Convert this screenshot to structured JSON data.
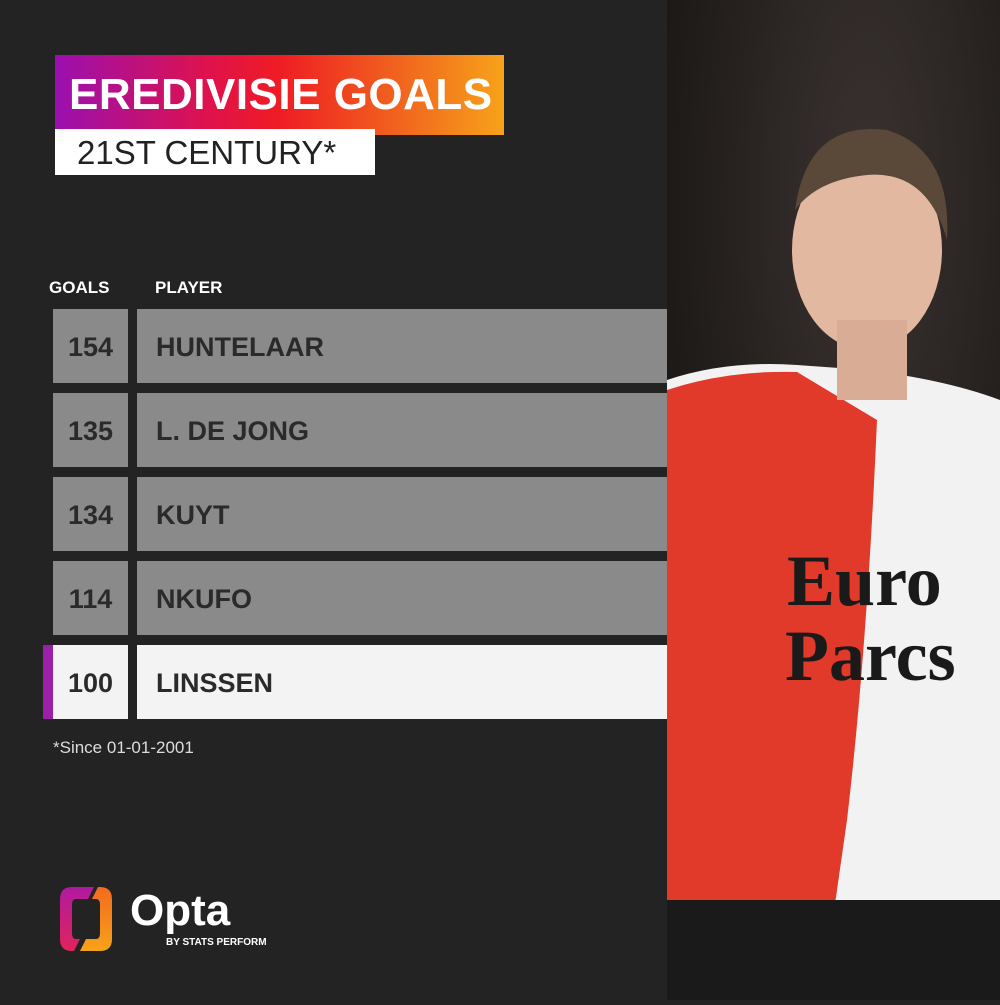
{
  "title": "EREDIVISIE GOALS",
  "subtitle": "21ST CENTURY*",
  "chart_data": {
    "type": "table",
    "columns": [
      "GOALS",
      "PLAYER"
    ],
    "rows": [
      {
        "goals": "154",
        "player": "HUNTELAAR"
      },
      {
        "goals": "135",
        "player": "L. DE JONG"
      },
      {
        "goals": "134",
        "player": "KUYT"
      },
      {
        "goals": "114",
        "player": "NKUFO"
      },
      {
        "goals": "100",
        "player": "LINSSEN",
        "highlighted": true
      }
    ]
  },
  "footnote": "*Since 01-01-2001",
  "logo": {
    "name": "Opta",
    "tagline": "BY STATS PERFORM"
  },
  "colors": {
    "background": "#232323",
    "row": "#8a8a8a",
    "highlight_row": "#f3f3f3",
    "highlight_marker": "#9b1fa8"
  }
}
